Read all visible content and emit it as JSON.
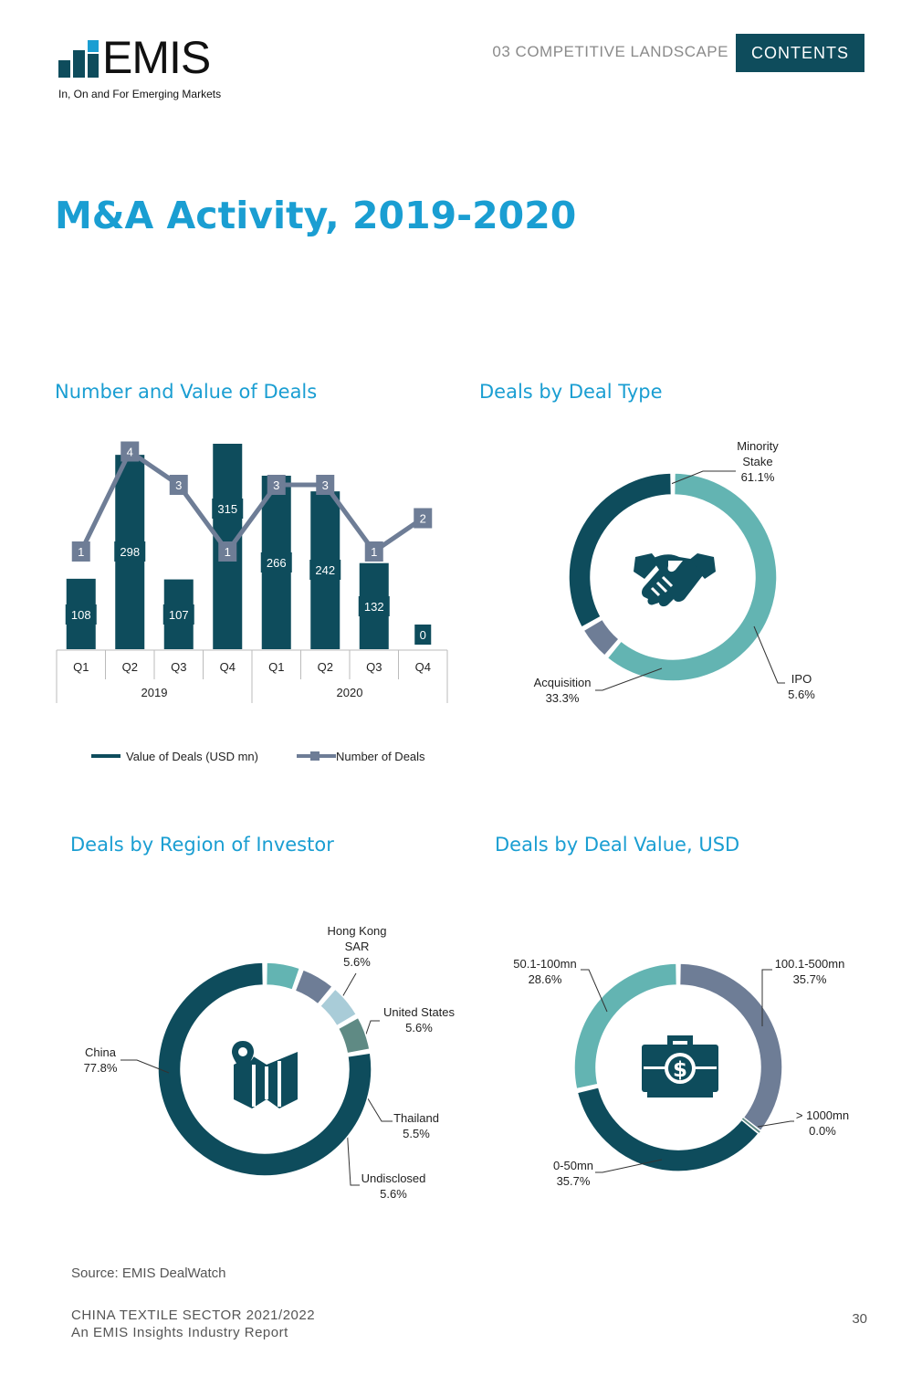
{
  "header": {
    "logo_text": "EMIS",
    "logo_tagline": "In, On and For Emerging Markets",
    "section": "03 COMPETITIVE LANDSCAPE",
    "contents_button": "CONTENTS"
  },
  "page_title": "M&A Activity, 2019-2020",
  "colors": {
    "dark_teal": "#0e4c5c",
    "slate": "#6e7d96",
    "light_teal": "#63b4b2",
    "pale_blue": "#a9ccd8",
    "grey_teal": "#5f8a84",
    "title_blue": "#1a9ed2"
  },
  "chart_data": [
    {
      "type": "bar",
      "title": "Number and Value of Deals",
      "categories": [
        "Q1",
        "Q2",
        "Q3",
        "Q4",
        "Q1",
        "Q2",
        "Q3",
        "Q4"
      ],
      "groups": [
        {
          "label": "2019",
          "span": 4
        },
        {
          "label": "2020",
          "span": 4
        }
      ],
      "series": [
        {
          "name": "Value of Deals (USD mn)",
          "type": "bar",
          "values": [
            108,
            298,
            107,
            315,
            266,
            242,
            132,
            0
          ]
        },
        {
          "name": "Number of Deals",
          "type": "line",
          "values": [
            1,
            4,
            3,
            1,
            3,
            3,
            1,
            2
          ]
        }
      ]
    },
    {
      "type": "pie",
      "title": "Deals by Deal Type",
      "icon": "handshake-icon",
      "slices": [
        {
          "label": "Minority Stake",
          "label_lines": [
            "Minority",
            "Stake"
          ],
          "value": 61.1,
          "display": "61.1%",
          "color": "#63b4b2"
        },
        {
          "label": "IPO",
          "label_lines": [
            "IPO"
          ],
          "value": 5.6,
          "display": "5.6%",
          "color": "#6e7d96"
        },
        {
          "label": "Acquisition",
          "label_lines": [
            "Acquisition"
          ],
          "value": 33.3,
          "display": "33.3%",
          "color": "#0e4c5c"
        }
      ]
    },
    {
      "type": "pie",
      "title": "Deals by Region of Investor",
      "icon": "map-pin-icon",
      "slices": [
        {
          "label": "Hong Kong SAR",
          "label_lines": [
            "Hong Kong",
            "SAR"
          ],
          "value": 5.6,
          "display": "5.6%",
          "color": "#63b4b2"
        },
        {
          "label": "United States",
          "label_lines": [
            "United States"
          ],
          "value": 5.6,
          "display": "5.6%",
          "color": "#6e7d96"
        },
        {
          "label": "Thailand",
          "label_lines": [
            "Thailand"
          ],
          "value": 5.5,
          "display": "5.5%",
          "color": "#a9ccd8"
        },
        {
          "label": "Undisclosed",
          "label_lines": [
            "Undisclosed"
          ],
          "value": 5.6,
          "display": "5.6%",
          "color": "#5f8a84"
        },
        {
          "label": "China",
          "label_lines": [
            "China"
          ],
          "value": 77.8,
          "display": "77.8%",
          "color": "#0e4c5c"
        }
      ]
    },
    {
      "type": "pie",
      "title": "Deals by Deal Value, USD",
      "icon": "money-briefcase-icon",
      "slices": [
        {
          "label": "100.1-500mn",
          "label_lines": [
            "100.1-500mn"
          ],
          "value": 35.7,
          "display": "35.7%",
          "color": "#6e7d96"
        },
        {
          "label": "> 1000mn",
          "label_lines": [
            "> 1000mn"
          ],
          "value": 0.0,
          "display": "0.0%",
          "color": "#5f8a84"
        },
        {
          "label": "0-50mn",
          "label_lines": [
            "0-50mn"
          ],
          "value": 35.7,
          "display": "35.7%",
          "color": "#0e4c5c"
        },
        {
          "label": "50.1-100mn",
          "label_lines": [
            "50.1-100mn"
          ],
          "value": 28.6,
          "display": "28.6%",
          "color": "#63b4b2"
        }
      ]
    }
  ],
  "source": "Source:  EMIS DealWatch",
  "footer": {
    "line1": "CHINA TEXTILE SECTOR 2021/2022",
    "line2": "An EMIS Insights Industry Report",
    "page_number": "30"
  }
}
